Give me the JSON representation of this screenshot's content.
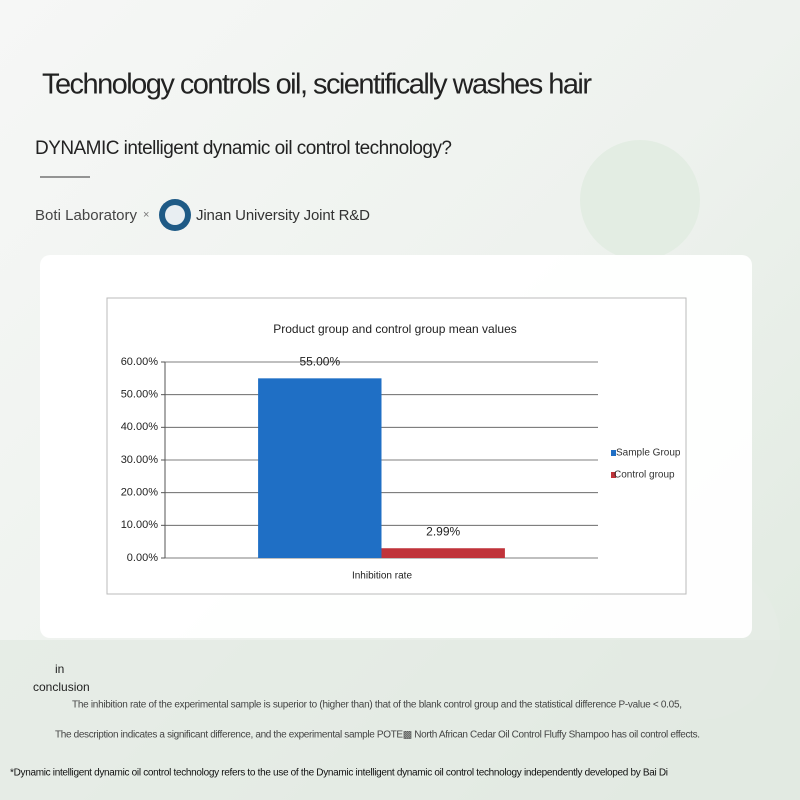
{
  "header": {
    "title": "Technology controls oil, scientifically washes hair",
    "subtitle": "DYNAMIC intelligent dynamic oil control technology?",
    "lab": "Boti Laboratory",
    "times": "×",
    "partner": "Jinan University Joint R&D"
  },
  "chart_data": {
    "type": "bar",
    "title": "Product group and control group mean values",
    "x_label": "Inhibition rate",
    "categories": [
      "Inhibition rate"
    ],
    "series": [
      {
        "name": "Sample Group",
        "color": "#1f6fc5",
        "values": [
          55
        ],
        "value_labels": [
          "55.00%"
        ]
      },
      {
        "name": "Control group",
        "color": "#c0333a",
        "values": [
          2.99
        ],
        "value_labels": [
          "2.99%"
        ]
      }
    ],
    "ylim": [
      0,
      60
    ],
    "yticks": [
      {
        "value": 0,
        "label": "0.00%"
      },
      {
        "value": 10,
        "label": "10.00%"
      },
      {
        "value": 20,
        "label": "20.00%"
      },
      {
        "value": 30,
        "label": "30.00%"
      },
      {
        "value": 40,
        "label": "40.00%"
      },
      {
        "value": 50,
        "label": "50.00%"
      },
      {
        "value": 60,
        "label": "60.00%"
      }
    ],
    "grid": true,
    "legend": "right"
  },
  "conclusion": {
    "label_1": "in",
    "label_2": "conclusion",
    "line_1": "The inhibition rate of the experimental sample is superior to (higher than) that of the blank control group and the statistical difference P-value < 0.05,",
    "line_2": "The description indicates a significant difference, and the experimental sample POTE▩ North African Cedar Oil Control Fluffy Shampoo has oil control effects."
  },
  "footnote": "*Dynamic intelligent dynamic oil control technology refers to the use of the Dynamic intelligent dynamic oil control technology independently developed by Bai Di"
}
